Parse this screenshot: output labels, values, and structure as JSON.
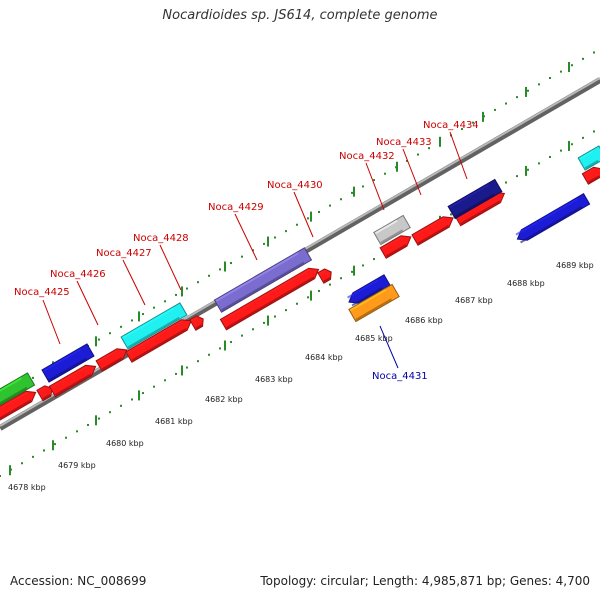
{
  "title": "Nocardioides sp. JS614, complete genome",
  "footer": {
    "accession": "Accession: NC_008699",
    "summary": "Topology: circular; Length: 4,985,871 bp; Genes: 4,700"
  },
  "colors": {
    "backbone": "#8c8c8c",
    "tick": "#2a8a2a",
    "label_forward": "#cc0000",
    "label_reverse": "#0000aa",
    "red": "#ff1a1a",
    "blue": "#1c1cd6",
    "cyan": "#20f0f0",
    "purple": "#7b6cd0",
    "grey": "#c8c8c8",
    "navy": "#1a1a8c",
    "orange": "#ff9a1a",
    "green": "#2fc42f"
  },
  "gene_labels": [
    {
      "text": "Noca_4425",
      "strand": "forward"
    },
    {
      "text": "Noca_4426",
      "strand": "forward"
    },
    {
      "text": "Noca_4427",
      "strand": "forward"
    },
    {
      "text": "Noca_4428",
      "strand": "forward"
    },
    {
      "text": "Noca_4429",
      "strand": "forward"
    },
    {
      "text": "Noca_4430",
      "strand": "forward"
    },
    {
      "text": "Noca_4432",
      "strand": "forward"
    },
    {
      "text": "Noca_4433",
      "strand": "forward"
    },
    {
      "text": "Noca_4434",
      "strand": "forward"
    },
    {
      "text": "Noca_4431",
      "strand": "reverse"
    }
  ],
  "kbp_labels": [
    "4678 kbp",
    "4679 kbp",
    "4680 kbp",
    "4681 kbp",
    "4682 kbp",
    "4683 kbp",
    "4684 kbp",
    "4685 kbp",
    "4686 kbp",
    "4687 kbp",
    "4688 kbp",
    "4689 kbp"
  ]
}
